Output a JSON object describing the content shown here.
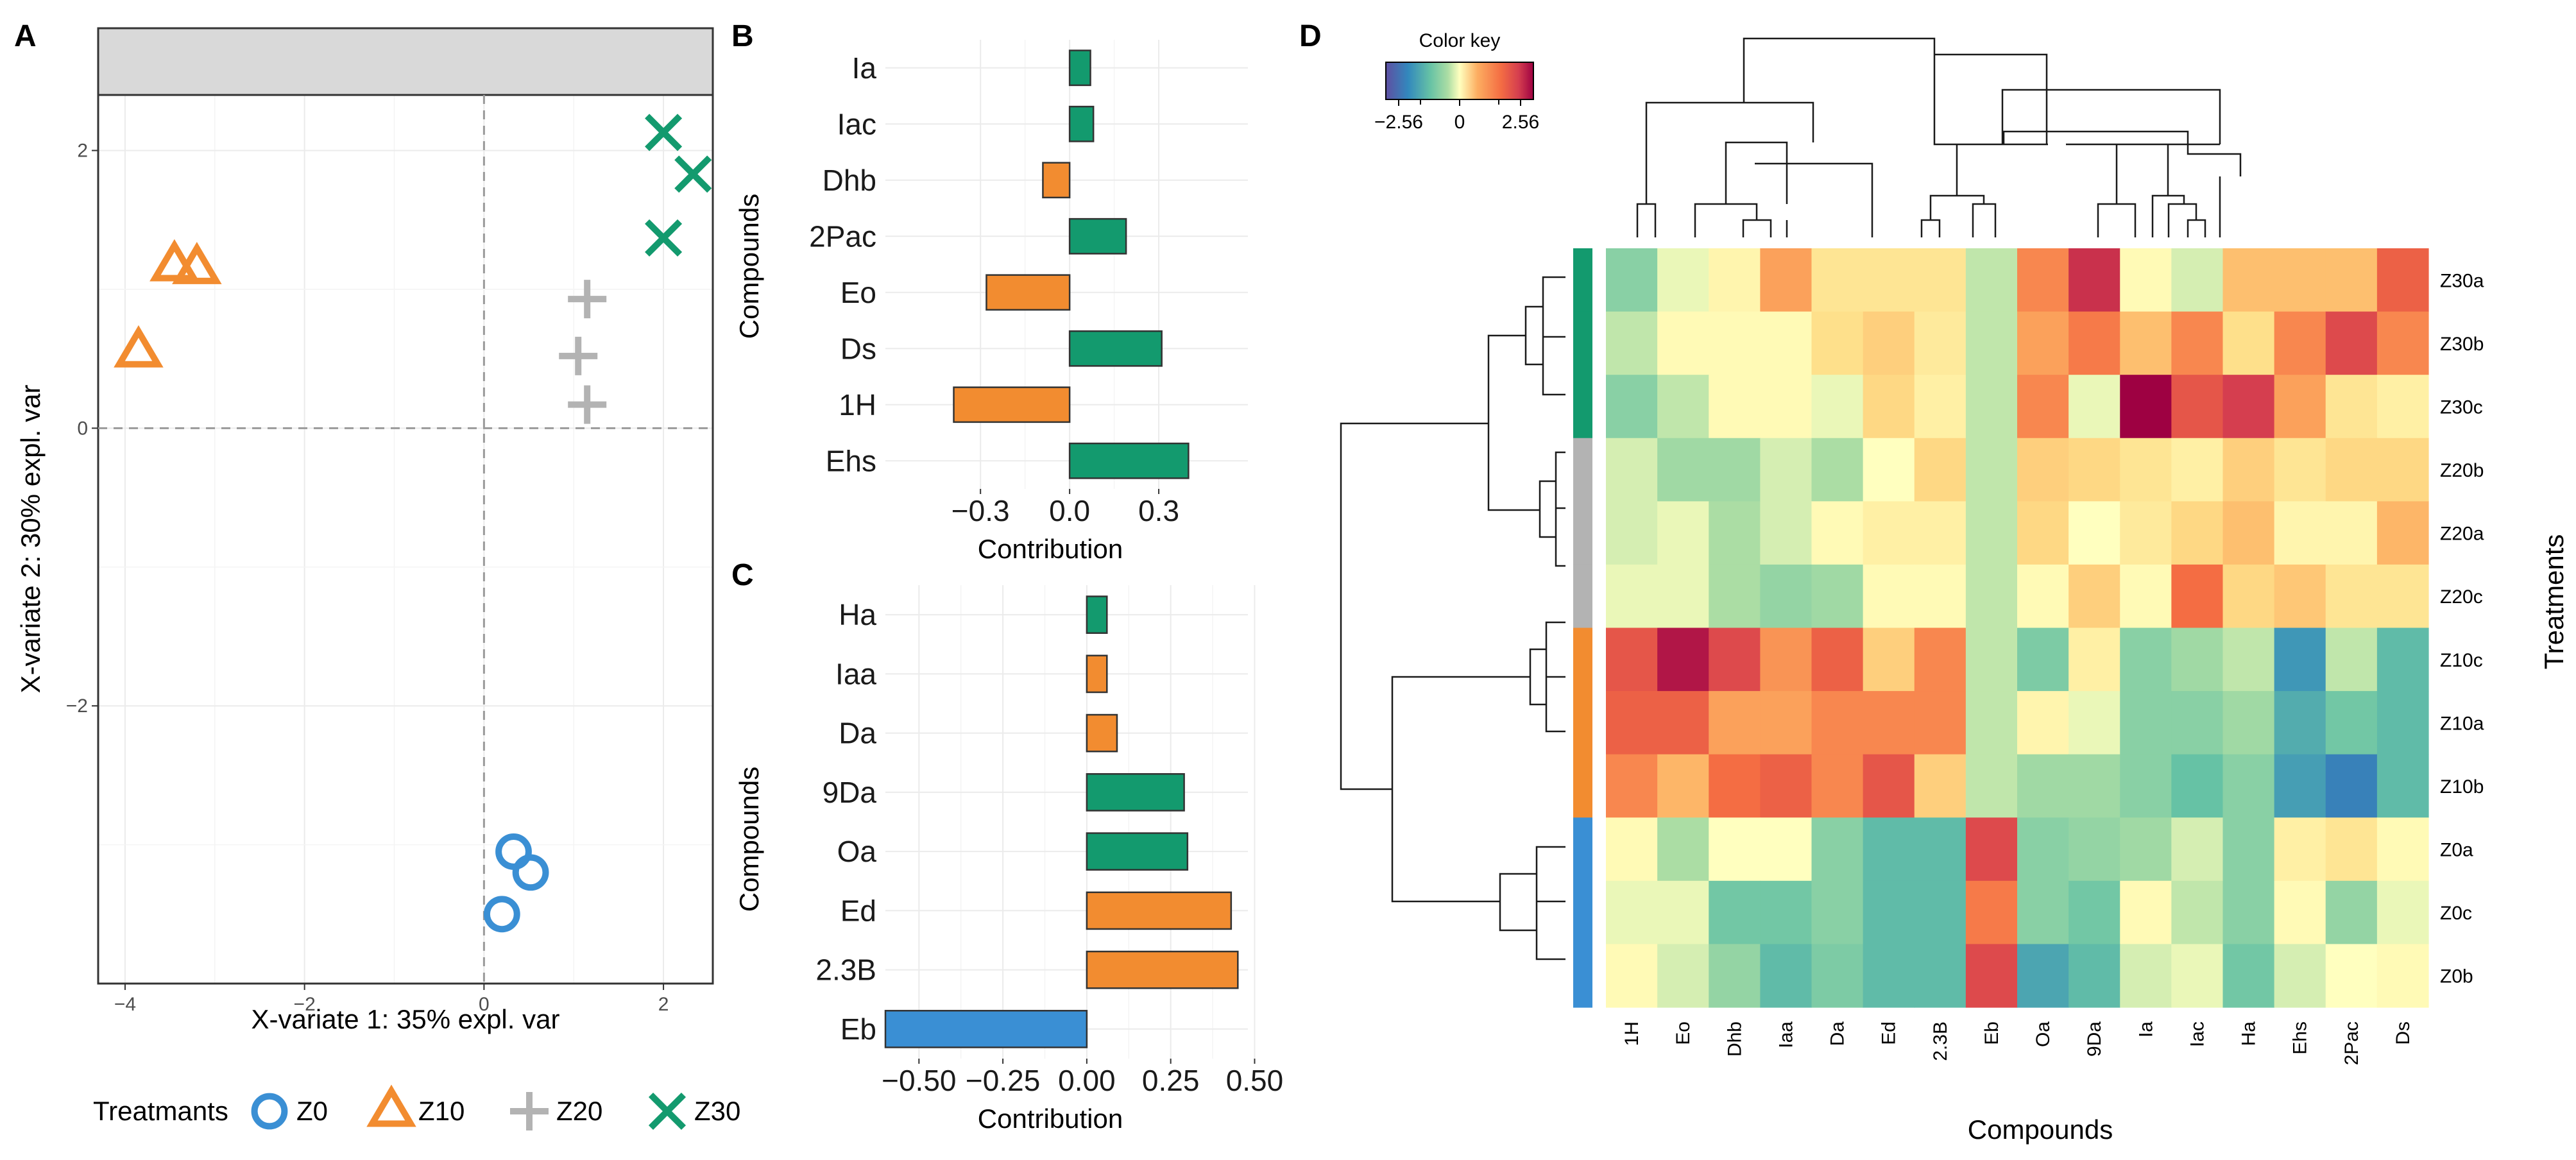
{
  "colors": {
    "Z0": "#3a8fd4",
    "Z10": "#f28c30",
    "Z20": "#b3b3b3",
    "Z30": "#139a6e"
  },
  "chart_data": [
    {
      "id": "A",
      "panel_label": "A",
      "type": "scatter",
      "title": "",
      "xlabel": "X-variate 1: 35% expl. var",
      "ylabel": "X-variate 2: 30% expl. var",
      "xlim": [
        -4.3,
        2.55
      ],
      "ylim": [
        -4.0,
        2.4
      ],
      "xticks": [
        -4,
        -2,
        0,
        2
      ],
      "yticks": [
        -2,
        0,
        2
      ],
      "xtick_labels": [
        "−4",
        "−2",
        "0",
        "2"
      ],
      "ytick_labels": [
        "−2",
        "0",
        "2"
      ],
      "legend_title": "Treatmants",
      "series": [
        {
          "name": "Z0",
          "marker": "circle",
          "points": [
            [
              0.33,
              -3.05
            ],
            [
              0.52,
              -3.2
            ],
            [
              0.2,
              -3.5
            ]
          ]
        },
        {
          "name": "Z10",
          "marker": "triangle",
          "points": [
            [
              -3.45,
              1.17
            ],
            [
              -3.2,
              1.15
            ],
            [
              -3.85,
              0.55
            ]
          ]
        },
        {
          "name": "Z20",
          "marker": "plus",
          "points": [
            [
              1.15,
              0.93
            ],
            [
              1.05,
              0.52
            ],
            [
              1.15,
              0.17
            ]
          ]
        },
        {
          "name": "Z30",
          "marker": "cross",
          "points": [
            [
              2.0,
              2.13
            ],
            [
              2.33,
              1.83
            ],
            [
              2.0,
              1.37
            ]
          ]
        }
      ]
    },
    {
      "id": "B",
      "panel_label": "B",
      "type": "bar",
      "orientation": "horizontal",
      "xlabel": "Contribution",
      "ylabel": "Compounds",
      "xlim": [
        -0.62,
        0.6
      ],
      "xticks": [
        -0.3,
        0.0,
        0.3
      ],
      "xtick_labels": [
        "−0.3",
        "0.0",
        "0.3"
      ],
      "categories": [
        "Ia",
        "Iac",
        "Dhb",
        "2Pac",
        "Eo",
        "Ds",
        "1H",
        "Ehs"
      ],
      "values": [
        0.07,
        0.08,
        -0.09,
        0.19,
        -0.28,
        0.31,
        -0.39,
        0.4
      ],
      "groups": [
        "Z30",
        "Z30",
        "Z10",
        "Z30",
        "Z10",
        "Z30",
        "Z10",
        "Z30"
      ]
    },
    {
      "id": "C",
      "panel_label": "C",
      "type": "bar",
      "orientation": "horizontal",
      "xlabel": "Contribution",
      "ylabel": "Compounds",
      "xlim": [
        -0.6,
        0.48
      ],
      "xticks": [
        -0.5,
        -0.25,
        0.0,
        0.25,
        0.5
      ],
      "xtick_labels": [
        "−0.50",
        "−0.25",
        "0.00",
        "0.25",
        "0.50"
      ],
      "categories": [
        "Ha",
        "Iaa",
        "Da",
        "9Da",
        "Oa",
        "Ed",
        "2.3B",
        "Eb"
      ],
      "values": [
        0.06,
        0.06,
        0.09,
        0.29,
        0.3,
        0.43,
        0.45,
        -0.6
      ],
      "groups": [
        "Z30",
        "Z10",
        "Z10",
        "Z30",
        "Z30",
        "Z10",
        "Z10",
        "Z0"
      ]
    },
    {
      "id": "D",
      "panel_label": "D",
      "type": "heatmap",
      "xlabel": "Compounds",
      "ylabel": "Treatments",
      "color_key_title": "Color key",
      "color_key_range": [
        -2.56,
        2.56
      ],
      "color_key_ticks": [
        "−2.56",
        "0",
        "2.56"
      ],
      "columns": [
        "1H",
        "Eo",
        "Dhb",
        "Iaa",
        "Da",
        "Ed",
        "2.3B",
        "Eb",
        "Oa",
        "9Da",
        "Ia",
        "Iac",
        "Ha",
        "Ehs",
        "2Pac",
        "Ds"
      ],
      "rows": [
        "Z30a",
        "Z30b",
        "Z30c",
        "Z20b",
        "Z20a",
        "Z20c",
        "Z10c",
        "Z10a",
        "Z10b",
        "Z0a",
        "Z0c",
        "Z0b"
      ],
      "row_groups": [
        "Z30",
        "Z30",
        "Z30",
        "Z20",
        "Z20",
        "Z20",
        "Z10",
        "Z10",
        "Z10",
        "Z0",
        "Z0",
        "Z0"
      ],
      "values": [
        [
          -0.7,
          -0.1,
          0.2,
          1.3,
          0.5,
          0.5,
          0.5,
          -0.3,
          1.5,
          2.2,
          0.1,
          -0.2,
          1.0,
          1.0,
          1.0,
          1.8
        ],
        [
          -0.3,
          0.1,
          0.1,
          0.1,
          0.6,
          0.8,
          0.4,
          -0.3,
          1.3,
          1.6,
          1.0,
          1.5,
          0.6,
          1.5,
          2.0,
          1.5
        ],
        [
          -0.7,
          -0.3,
          0.1,
          0.1,
          -0.1,
          0.7,
          0.3,
          -0.3,
          1.5,
          -0.1,
          2.56,
          1.9,
          2.1,
          1.3,
          0.5,
          0.3
        ],
        [
          -0.2,
          -0.5,
          -0.5,
          -0.2,
          -0.4,
          0.0,
          0.7,
          -0.3,
          0.8,
          0.7,
          0.5,
          0.3,
          0.8,
          0.5,
          0.7,
          0.7
        ],
        [
          -0.2,
          -0.1,
          -0.4,
          -0.2,
          0.1,
          0.3,
          0.3,
          -0.3,
          0.7,
          0.0,
          0.4,
          0.7,
          1.0,
          0.2,
          0.2,
          1.1
        ],
        [
          -0.1,
          -0.1,
          -0.4,
          -0.6,
          -0.5,
          0.1,
          0.1,
          -0.3,
          0.1,
          0.8,
          0.1,
          1.7,
          0.7,
          0.9,
          0.5,
          0.5
        ],
        [
          1.9,
          2.4,
          2.0,
          1.4,
          1.8,
          0.8,
          1.5,
          -0.3,
          -0.8,
          0.3,
          -0.7,
          -0.5,
          -0.3,
          -1.6,
          -0.3,
          -1.1
        ],
        [
          1.8,
          1.8,
          1.3,
          1.3,
          1.5,
          1.5,
          1.5,
          -0.3,
          0.2,
          -0.1,
          -0.7,
          -0.7,
          -0.5,
          -1.3,
          -0.9,
          -1.1
        ],
        [
          1.5,
          1.1,
          1.7,
          1.8,
          1.5,
          1.9,
          0.8,
          -0.3,
          -0.5,
          -0.5,
          -0.7,
          -1.0,
          -0.7,
          -1.5,
          -1.9,
          -1.1
        ],
        [
          0.1,
          -0.4,
          0.0,
          0.0,
          -0.7,
          -1.1,
          -1.1,
          2.0,
          -0.7,
          -0.6,
          -0.5,
          -0.2,
          -0.7,
          0.3,
          0.5,
          0.1
        ],
        [
          -0.1,
          -0.1,
          -0.9,
          -0.9,
          -0.7,
          -1.1,
          -1.1,
          1.6,
          -0.7,
          -0.9,
          0.1,
          -0.3,
          -0.7,
          0.1,
          -0.6,
          -0.1
        ],
        [
          0.1,
          -0.2,
          -0.6,
          -1.1,
          -0.8,
          -1.1,
          -1.1,
          2.0,
          -1.4,
          -1.1,
          -0.2,
          -0.1,
          -0.9,
          -0.2,
          0.0,
          0.1
        ]
      ]
    }
  ]
}
